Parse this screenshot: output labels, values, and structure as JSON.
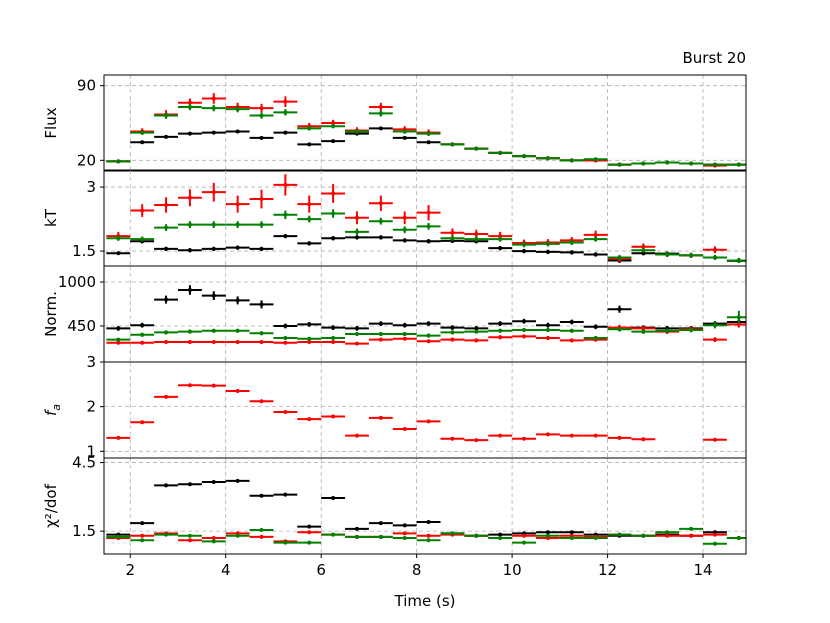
{
  "chart_data": {
    "type": "scatter",
    "title": "Burst 20",
    "xlabel": "Time (s)",
    "xlim": [
      1.45,
      14.9
    ],
    "x_ticks": [
      2,
      4,
      6,
      8,
      10,
      12,
      14
    ],
    "grid": true,
    "series_colors": {
      "black": "#000000",
      "red": "#ff0000",
      "green": "#008000"
    },
    "time_bins": [
      1.75,
      2.25,
      2.75,
      3.25,
      3.75,
      4.25,
      4.75,
      5.25,
      5.75,
      6.25,
      6.75,
      7.25,
      7.75,
      8.25,
      8.75,
      9.25,
      9.75,
      10.25,
      10.75,
      11.25,
      11.75,
      12.25,
      12.75,
      13.25,
      13.75,
      14.25,
      14.75
    ],
    "panels": [
      {
        "id": "flux",
        "ylabel": "Flux",
        "ylim": [
          10,
          100
        ],
        "y_ticks": [
          20,
          90
        ],
        "series": [
          {
            "color": "black",
            "values": [
              19,
              37,
              42,
              45,
              46,
              47,
              41,
              46,
              35,
              38,
              45,
              50,
              41,
              37,
              35,
              31,
              27,
              24,
              22,
              20,
              20,
              16,
              17,
              18,
              17,
              16,
              16
            ],
            "err": [
              1,
              1.5,
              1.5,
              1.5,
              1.5,
              1.5,
              1.5,
              1.5,
              1.5,
              1.5,
              1.5,
              1.5,
              1.5,
              1.5,
              1,
              1,
              1,
              1,
              1,
              1,
              1,
              1,
              1,
              1,
              1,
              1,
              1
            ]
          },
          {
            "color": "red",
            "values": [
              19,
              47,
              63,
              74,
              78,
              70,
              69,
              75,
              52,
              55,
              48,
              70,
              49,
              46,
              35,
              31,
              27,
              24,
              22,
              20,
              20,
              16,
              17,
              18,
              17,
              15,
              16
            ],
            "err": [
              1,
              3,
              4,
              4,
              5,
              4,
              4,
              5,
              3,
              3,
              3,
              4,
              3,
              3,
              1.5,
              1.5,
              1,
              1,
              1,
              1,
              1,
              1,
              1,
              1,
              1,
              1,
              1
            ]
          },
          {
            "color": "green",
            "values": [
              19,
              46,
              62,
              70,
              69,
              68,
              62,
              65,
              50,
              52,
              47,
              64,
              47,
              45,
              35,
              31,
              27,
              24,
              22,
              20,
              21,
              16,
              17,
              18,
              17,
              16,
              16
            ],
            "err": [
              1,
              2,
              3,
              3,
              3,
              3,
              3,
              3,
              2,
              2,
              2,
              3,
              2,
              2,
              1.5,
              1.5,
              1,
              1,
              1,
              1,
              1,
              1,
              1,
              1,
              1,
              1,
              1
            ]
          }
        ]
      },
      {
        "id": "kt",
        "ylabel": "kT",
        "ylim": [
          1.15,
          3.4
        ],
        "y_ticks": [
          1.5,
          3.0
        ],
        "series": [
          {
            "color": "black",
            "values": [
              1.45,
              1.73,
              1.55,
              1.52,
              1.55,
              1.58,
              1.55,
              1.85,
              1.68,
              1.8,
              1.82,
              1.82,
              1.75,
              1.73,
              1.74,
              1.73,
              1.57,
              1.5,
              1.48,
              1.47,
              1.42,
              1.28,
              1.45,
              1.44,
              1.4,
              1.35,
              1.27
            ],
            "err": [
              0.04,
              0.05,
              0.05,
              0.05,
              0.05,
              0.05,
              0.05,
              0.05,
              0.05,
              0.05,
              0.05,
              0.05,
              0.05,
              0.05,
              0.05,
              0.05,
              0.05,
              0.05,
              0.05,
              0.05,
              0.05,
              0.06,
              0.05,
              0.05,
              0.05,
              0.05,
              0.05
            ]
          },
          {
            "color": "red",
            "values": [
              1.85,
              2.45,
              2.58,
              2.75,
              2.88,
              2.6,
              2.72,
              3.05,
              2.6,
              2.85,
              2.28,
              2.62,
              2.28,
              2.4,
              1.93,
              1.9,
              1.85,
              1.69,
              1.7,
              1.75,
              1.88,
              1.32,
              1.6,
              1.42,
              1.4,
              1.53,
              1.28
            ],
            "err": [
              0.1,
              0.15,
              0.18,
              0.2,
              0.22,
              0.2,
              0.22,
              0.25,
              0.2,
              0.22,
              0.15,
              0.18,
              0.15,
              0.18,
              0.1,
              0.1,
              0.1,
              0.08,
              0.08,
              0.08,
              0.1,
              0.08,
              0.08,
              0.06,
              0.06,
              0.08,
              0.06
            ]
          },
          {
            "color": "green",
            "values": [
              1.8,
              1.78,
              2.05,
              2.12,
              2.12,
              2.12,
              2.12,
              2.35,
              2.25,
              2.38,
              1.95,
              2.2,
              2.0,
              2.08,
              1.8,
              1.78,
              1.78,
              1.65,
              1.67,
              1.7,
              1.78,
              1.35,
              1.52,
              1.42,
              1.4,
              1.35,
              1.28
            ],
            "err": [
              0.06,
              0.06,
              0.08,
              0.08,
              0.08,
              0.08,
              0.08,
              0.1,
              0.08,
              0.1,
              0.08,
              0.08,
              0.08,
              0.08,
              0.06,
              0.06,
              0.06,
              0.06,
              0.06,
              0.06,
              0.06,
              0.06,
              0.06,
              0.06,
              0.06,
              0.06,
              0.06
            ]
          }
        ]
      },
      {
        "id": "norm",
        "ylabel": "Norm.",
        "ylim": [
          0,
          1200
        ],
        "y_ticks": [
          450,
          1000
        ],
        "series": [
          {
            "color": "black",
            "values": [
              420,
              460,
              780,
              900,
              830,
              770,
              720,
              450,
              470,
              430,
              420,
              480,
              460,
              480,
              430,
              420,
              480,
              510,
              460,
              500,
              440,
              660,
              430,
              420,
              420,
              480,
              500
            ],
            "err": [
              30,
              30,
              50,
              60,
              55,
              50,
              50,
              30,
              30,
              30,
              30,
              30,
              30,
              30,
              30,
              30,
              30,
              30,
              30,
              30,
              30,
              45,
              30,
              30,
              30,
              30,
              30
            ]
          },
          {
            "color": "red",
            "values": [
              240,
              240,
              250,
              250,
              250,
              250,
              250,
              240,
              250,
              250,
              230,
              280,
              290,
              260,
              280,
              270,
              310,
              320,
              300,
              270,
              280,
              430,
              420,
              380,
              410,
              280,
              470
            ],
            "err": [
              20,
              20,
              20,
              20,
              20,
              20,
              20,
              20,
              20,
              20,
              20,
              20,
              20,
              20,
              25,
              25,
              25,
              25,
              25,
              25,
              25,
              35,
              35,
              30,
              35,
              30,
              40
            ]
          },
          {
            "color": "green",
            "values": [
              280,
              340,
              370,
              380,
              390,
              390,
              360,
              300,
              290,
              300,
              350,
              350,
              350,
              330,
              370,
              380,
              390,
              400,
              400,
              390,
              300,
              410,
              380,
              390,
              400,
              460,
              560
            ],
            "err": [
              20,
              25,
              25,
              25,
              25,
              25,
              25,
              20,
              20,
              20,
              25,
              25,
              25,
              25,
              25,
              25,
              25,
              25,
              25,
              25,
              25,
              30,
              30,
              30,
              30,
              40,
              80
            ]
          }
        ]
      },
      {
        "id": "fa",
        "ylabel": "f_a",
        "ylim": [
          0.85,
          3.0
        ],
        "y_ticks": [
          1,
          2,
          3
        ],
        "series": [
          {
            "color": "red",
            "values": [
              1.3,
              1.65,
              2.22,
              2.48,
              2.47,
              2.35,
              2.12,
              1.88,
              1.72,
              1.78,
              1.35,
              1.75,
              1.5,
              1.67,
              1.28,
              1.25,
              1.35,
              1.28,
              1.38,
              1.35,
              1.35,
              1.3,
              1.27,
              null,
              null,
              1.26,
              null
            ],
            "err": [
              0.03,
              0.03,
              0.03,
              0.03,
              0.03,
              0.03,
              0.03,
              0.03,
              0.03,
              0.03,
              0.03,
              0.03,
              0.03,
              0.03,
              0.03,
              0.03,
              0.03,
              0.03,
              0.03,
              0.03,
              0.03,
              0.03,
              0.03,
              null,
              null,
              0.03,
              null
            ]
          }
        ]
      },
      {
        "id": "chi2",
        "ylabel": "χ²/dof",
        "ylim": [
          0.5,
          4.7
        ],
        "y_ticks": [
          1.5,
          4.5
        ],
        "series": [
          {
            "color": "black",
            "values": [
              1.35,
              1.85,
              3.5,
              3.55,
              3.65,
              3.7,
              3.05,
              3.1,
              1.7,
              2.95,
              1.6,
              1.85,
              1.75,
              1.9,
              1.4,
              1.3,
              1.35,
              1.4,
              1.45,
              1.45,
              1.35,
              1.3,
              1.3,
              1.35,
              1.3,
              1.45,
              1.2
            ],
            "err": [
              0.03,
              0.03,
              0.03,
              0.03,
              0.03,
              0.03,
              0.03,
              0.03,
              0.03,
              0.03,
              0.03,
              0.03,
              0.03,
              0.03,
              0.03,
              0.03,
              0.03,
              0.03,
              0.03,
              0.03,
              0.03,
              0.03,
              0.03,
              0.03,
              0.03,
              0.03,
              0.03
            ]
          },
          {
            "color": "red",
            "values": [
              1.2,
              1.3,
              1.4,
              1.1,
              1.2,
              1.4,
              1.25,
              1.05,
              1.45,
              1.35,
              1.25,
              1.25,
              1.4,
              1.3,
              1.35,
              1.3,
              1.2,
              1.3,
              1.2,
              1.3,
              1.25,
              1.35,
              1.3,
              1.3,
              1.3,
              1.35,
              1.2
            ],
            "err": [
              0.03,
              0.03,
              0.03,
              0.03,
              0.03,
              0.03,
              0.03,
              0.03,
              0.03,
              0.03,
              0.03,
              0.03,
              0.03,
              0.03,
              0.03,
              0.03,
              0.03,
              0.03,
              0.03,
              0.03,
              0.03,
              0.03,
              0.03,
              0.03,
              0.03,
              0.03,
              0.03
            ]
          },
          {
            "color": "green",
            "values": [
              1.25,
              1.1,
              1.35,
              1.3,
              1.05,
              1.3,
              1.55,
              1.0,
              1.0,
              1.35,
              1.25,
              1.25,
              1.2,
              1.1,
              1.4,
              1.3,
              1.2,
              1.0,
              1.3,
              1.2,
              1.2,
              1.35,
              1.3,
              1.45,
              1.6,
              0.95,
              1.2
            ],
            "err": [
              0.03,
              0.03,
              0.03,
              0.03,
              0.03,
              0.03,
              0.03,
              0.03,
              0.03,
              0.03,
              0.03,
              0.03,
              0.03,
              0.03,
              0.03,
              0.03,
              0.03,
              0.03,
              0.03,
              0.03,
              0.03,
              0.03,
              0.03,
              0.03,
              0.03,
              0.03,
              0.03
            ]
          }
        ]
      }
    ]
  }
}
